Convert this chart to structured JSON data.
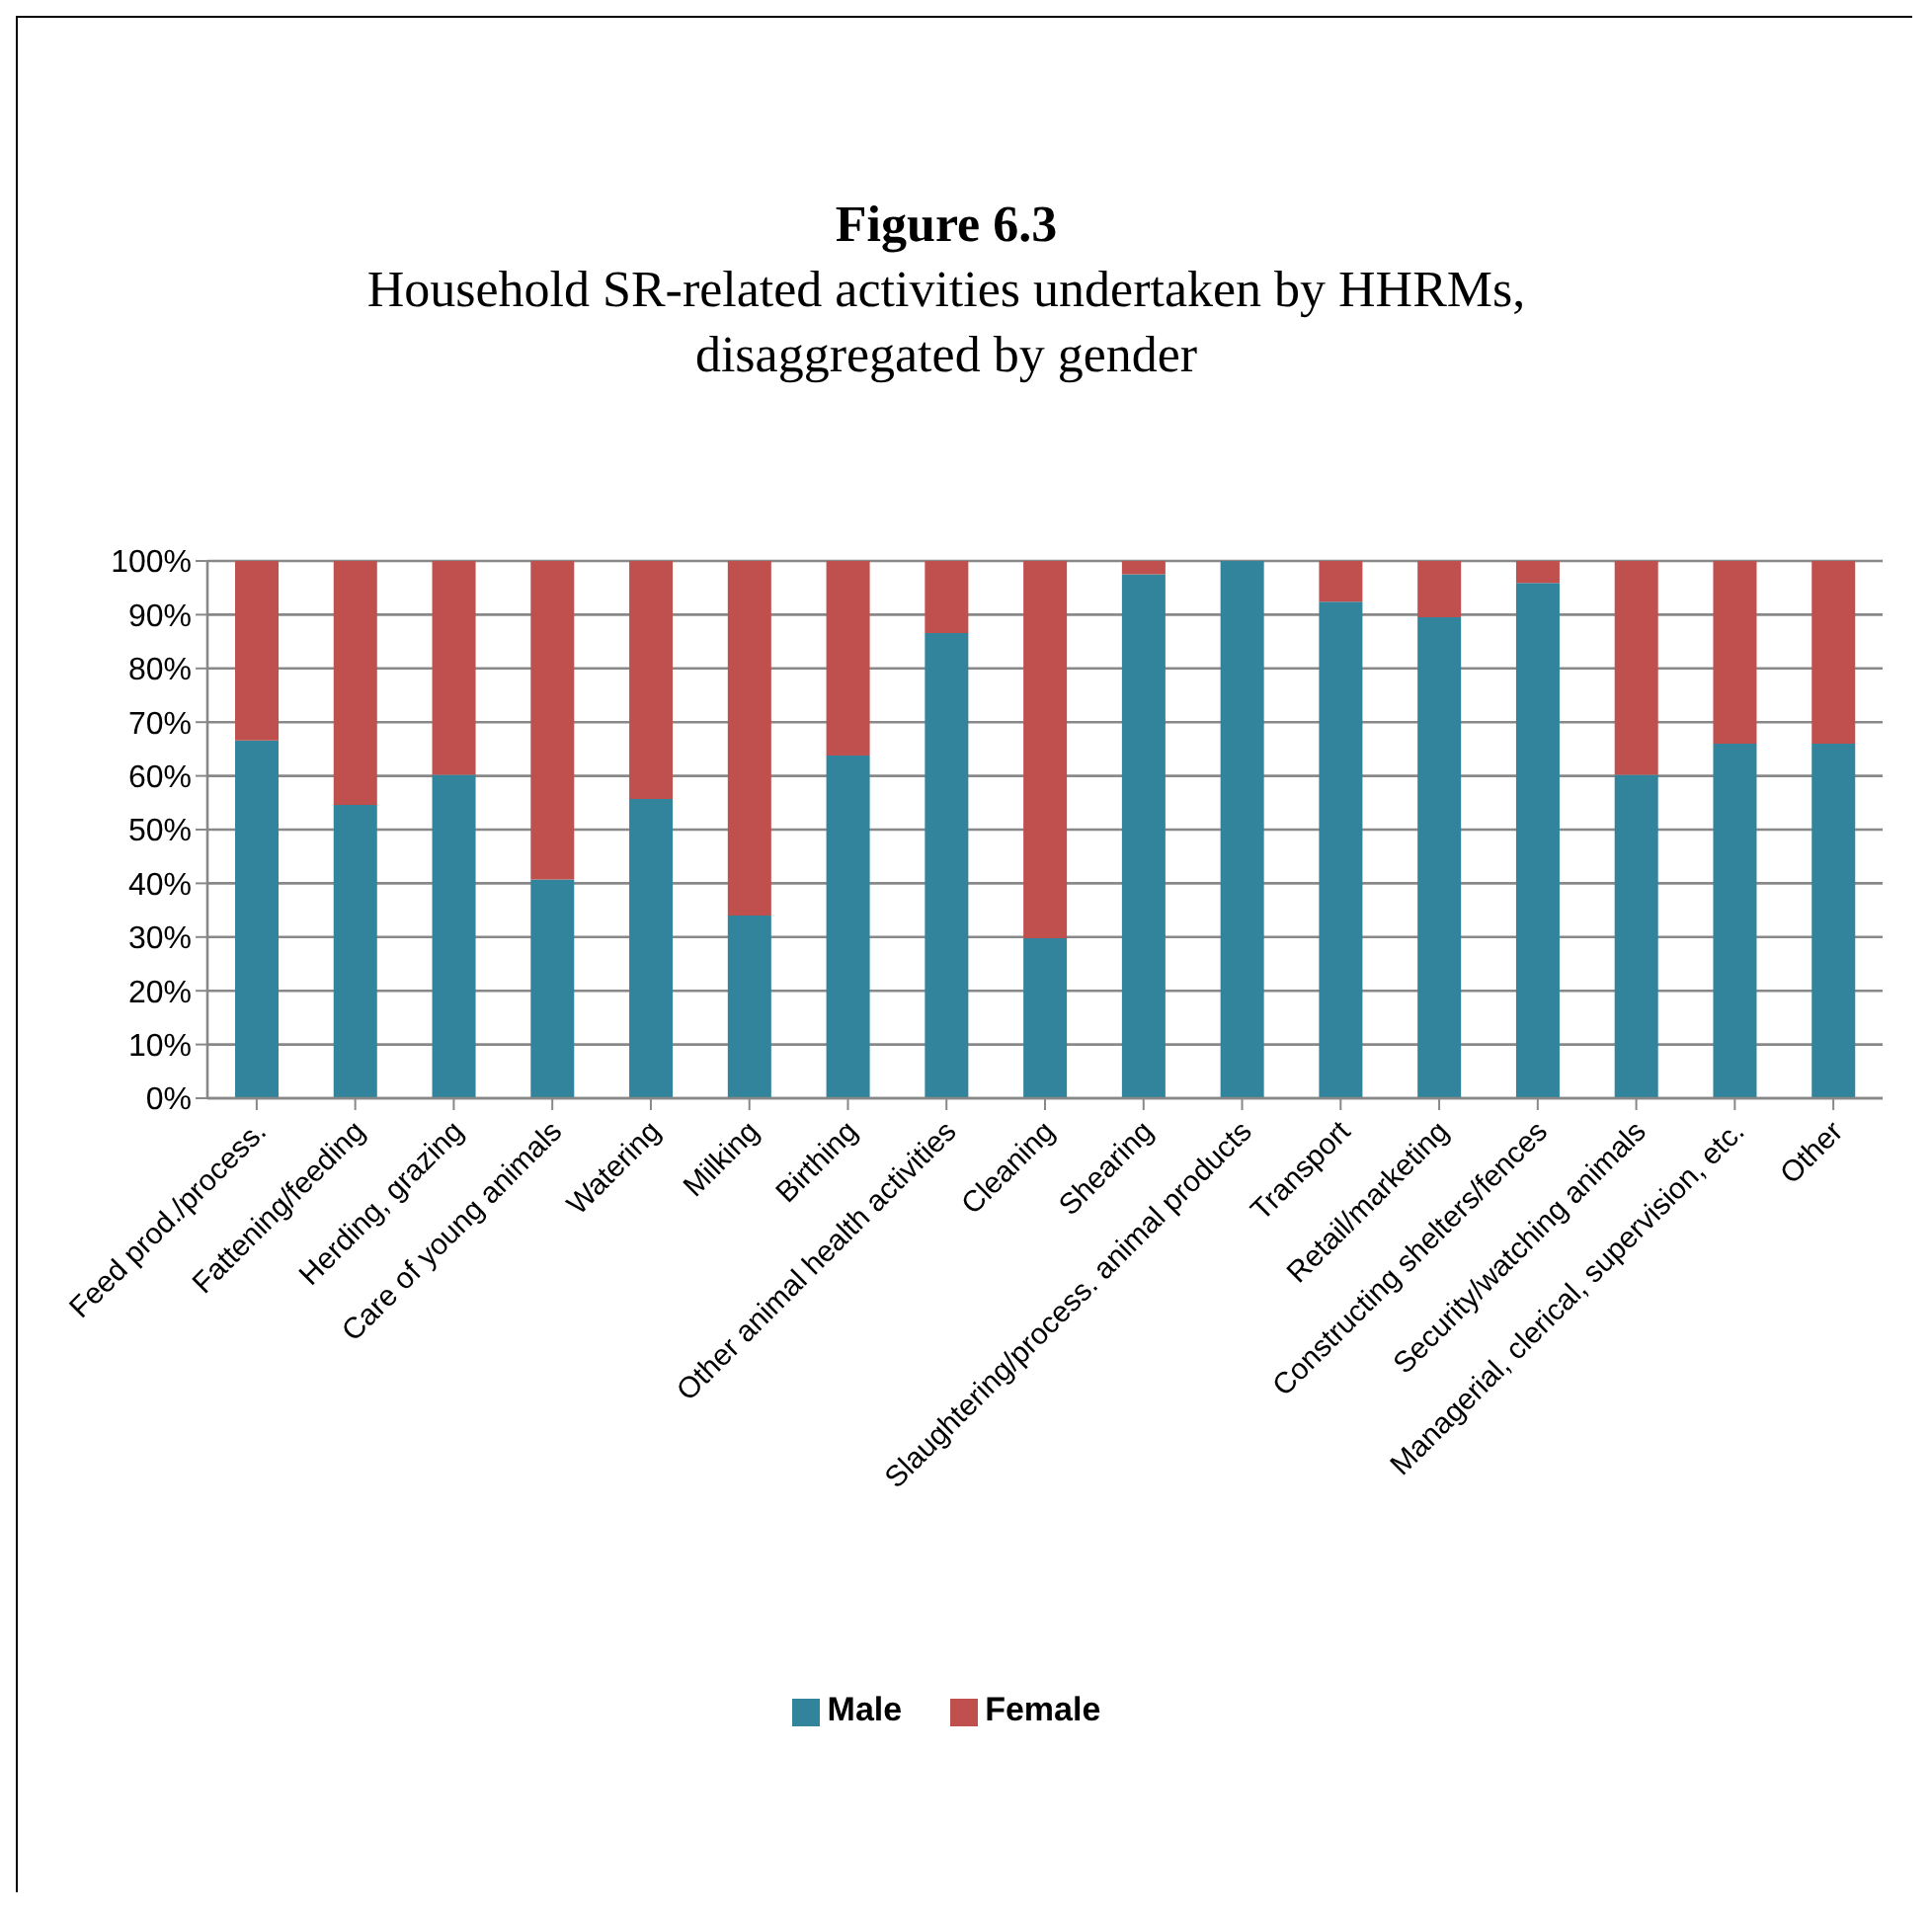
{
  "chart_data": {
    "type": "bar",
    "stacked": true,
    "title": "Figure 6.3",
    "subtitle": "Household SR-related activities undertaken by HHRMs, disaggregated by gender",
    "categories": [
      "Feed prod./process.",
      "Fattening/feeding",
      "Herding, grazing",
      "Care of young animals",
      "Watering",
      "Milking",
      "Birthing",
      "Other animal health activities",
      "Cleaning",
      "Shearing",
      "Slaughtering/process. animal products",
      "Transport",
      "Retail/marketing",
      "Constructing shelters/fences",
      "Security/watching animals",
      "Managerial, clerical, supervision, etc.",
      "Other"
    ],
    "series": [
      {
        "name": "Male",
        "color": "#31849b",
        "values": [
          66.6,
          54.6,
          60.2,
          40.7,
          55.7,
          34.0,
          63.8,
          86.6,
          29.8,
          97.5,
          100,
          92.4,
          89.5,
          95.9,
          60.2,
          66.0,
          66.0
        ]
      },
      {
        "name": "Female",
        "color": "#c0504d",
        "values": [
          33.4,
          45.4,
          39.8,
          59.3,
          44.3,
          66.0,
          36.2,
          13.4,
          70.2,
          2.5,
          0,
          7.6,
          10.5,
          4.1,
          39.8,
          34.0,
          34.0
        ]
      }
    ],
    "ylim": [
      0,
      100
    ],
    "yticks": [
      {
        "value": 0,
        "label": "0%"
      },
      {
        "value": 10,
        "label": "10%"
      },
      {
        "value": 20,
        "label": "20%"
      },
      {
        "value": 30,
        "label": "30%"
      },
      {
        "value": 40,
        "label": "40%"
      },
      {
        "value": 50,
        "label": "50%"
      },
      {
        "value": 60,
        "label": "60%"
      },
      {
        "value": 70,
        "label": "70%"
      },
      {
        "value": 80,
        "label": "80%"
      },
      {
        "value": 90,
        "label": "90%"
      },
      {
        "value": 100,
        "label": "100%"
      }
    ],
    "grid": "y",
    "legend": "bottom"
  }
}
